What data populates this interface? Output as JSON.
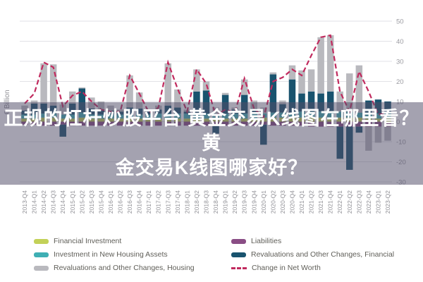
{
  "overlay": {
    "title": "正规的杠杆炒股平台 黄金交易K线图在哪里看？黄金交易K线图哪家好？",
    "lines": [
      "正规的杠杆炒股平台 黄金交易K线图在哪里看？黄",
      "金交易K线图哪家好？"
    ]
  },
  "colors": {
    "financial_investment": "#c3d158",
    "liabilities": "#8a4d85",
    "new_housing": "#3fafb4",
    "reval_financial": "#19536e",
    "reval_housing": "#b9b9be",
    "net_worth_line": "#c12a5e",
    "grid": "#e2e2e7",
    "axis_text": "#9b9ba1",
    "x_text": "#8f8f95",
    "legend_text": "#5f5e58"
  },
  "legend": [
    {
      "label": "Financial Investment",
      "color_key": "financial_investment",
      "type": "swatch",
      "col": 0,
      "row": 0
    },
    {
      "label": "Investment in New Housing Assets",
      "color_key": "new_housing",
      "type": "swatch",
      "col": 0,
      "row": 1
    },
    {
      "label": "Revaluations and Other Changes, Housing",
      "color_key": "reval_housing",
      "type": "swatch",
      "col": 0,
      "row": 2
    },
    {
      "label": "Liabilities",
      "color_key": "liabilities",
      "type": "swatch",
      "col": 1,
      "row": 0
    },
    {
      "label": "Revaluations and Other Changes, Financial",
      "color_key": "reval_financial",
      "type": "swatch",
      "col": 1,
      "row": 1
    },
    {
      "label": "Change in Net Worth",
      "color_key": "net_worth_line",
      "type": "dash",
      "col": 1,
      "row": 2
    }
  ],
  "chart_data": {
    "type": "bar",
    "subtype": "stacked-bars-with-line",
    "ylabel": "€ Billion",
    "ylim": [
      -30,
      50
    ],
    "yticks": [
      50,
      40,
      30,
      20,
      10,
      0,
      -10,
      -20,
      -30
    ],
    "grid": true,
    "legend_position": "bottom",
    "categories": [
      "2013-Q4",
      "2014-Q1",
      "2014-Q2",
      "2014-Q3",
      "2014-Q4",
      "2015-Q1",
      "2015-Q2",
      "2015-Q3",
      "2015-Q4",
      "2016-Q1",
      "2016-Q2",
      "2016-Q3",
      "2016-Q4",
      "2017-Q1",
      "2017-Q2",
      "2017-Q3",
      "2017-Q4",
      "2018-Q1",
      "2018-Q2",
      "2018-Q3",
      "2018-Q4",
      "2019-Q1",
      "2019-Q2",
      "2019-Q3",
      "2019-Q4",
      "2020-Q1",
      "2020-Q2",
      "2020-Q3",
      "2020-Q4",
      "2021-Q1",
      "2021-Q2",
      "2021-Q3",
      "2021-Q4",
      "2022-Q1",
      "2022-Q2",
      "2022-Q3",
      "2022-Q4",
      "2023-Q1",
      "2023-Q2"
    ],
    "series": [
      {
        "name": "Financial Investment",
        "color_key": "financial_investment",
        "values": [
          1.5,
          1.5,
          2,
          2,
          1.5,
          1.5,
          2,
          1.5,
          1.5,
          1.5,
          1.5,
          1.5,
          1.5,
          1.5,
          1.5,
          1.5,
          1.5,
          1.5,
          1.5,
          1.5,
          1.5,
          1.5,
          1.5,
          1.5,
          1.5,
          2,
          2,
          2,
          2,
          2,
          2,
          2,
          2,
          2,
          2,
          2,
          1.5,
          1.5,
          1.5
        ]
      },
      {
        "name": "Liabilities",
        "color_key": "liabilities",
        "values": [
          -1.5,
          -1.5,
          -2,
          -2,
          -1.5,
          -2,
          -2,
          -2,
          -2,
          -2,
          -2,
          -2,
          -2,
          -2,
          -2,
          -2,
          -2,
          -2,
          -2,
          -2,
          -2,
          -2,
          -2,
          -2,
          -2,
          -1.5,
          -2,
          -2,
          -2,
          -2,
          -2.5,
          -2.5,
          -2.5,
          -2.5,
          -2.5,
          -2.5,
          -2.5,
          -2.5,
          -2.5
        ]
      },
      {
        "name": "Investment in New Housing Assets",
        "color_key": "new_housing",
        "values": [
          2,
          2,
          2,
          2,
          2,
          2,
          2.5,
          2,
          2,
          2,
          2,
          2,
          2,
          2,
          2.5,
          2.5,
          2.5,
          2.5,
          2.5,
          2.5,
          2.5,
          2.5,
          2.5,
          2.5,
          2.5,
          2,
          2.5,
          2.5,
          2.5,
          3,
          3,
          3,
          3,
          3,
          3,
          2.5,
          3,
          2.5,
          2.5
        ]
      },
      {
        "name": "Revaluations and Other Changes, Financial",
        "color_key": "reval_financial",
        "values": [
          2,
          5.5,
          5,
          4,
          -6,
          5.5,
          12,
          3,
          2.5,
          2,
          1.5,
          3.5,
          3,
          1.5,
          2,
          4,
          3,
          1,
          11,
          11.5,
          -4,
          9.3,
          2,
          9.3,
          2.5,
          -10,
          19,
          4.2,
          16.5,
          9,
          10,
          9,
          10,
          -16,
          -21.5,
          -3,
          6,
          7,
          6
        ]
      },
      {
        "name": "Revaluations and Other Changes, Housing",
        "color_key": "reval_housing",
        "values": [
          2.5,
          1.5,
          20,
          20.5,
          5,
          6,
          0.5,
          5.5,
          4,
          2.5,
          1,
          16,
          8,
          1,
          2,
          21,
          9,
          1,
          11,
          4.5,
          3,
          1,
          1,
          7.7,
          4,
          3,
          1,
          1.8,
          7,
          11.5,
          11,
          28,
          28,
          10,
          19,
          23.5,
          -12,
          -8,
          -7
        ]
      }
    ],
    "line_series": {
      "name": "Change in Net Worth",
      "color_key": "net_worth_line",
      "style": "dashed",
      "values": [
        9,
        14,
        29.5,
        27,
        7.5,
        13,
        15,
        10,
        6,
        5,
        5,
        23,
        14,
        4.5,
        7,
        29.5,
        16.5,
        5,
        26,
        19,
        3,
        6,
        4.5,
        21.5,
        6.5,
        2,
        20,
        22,
        26,
        23,
        33,
        42,
        43,
        15,
        5,
        25,
        15,
        3.5,
        4.5
      ]
    }
  }
}
